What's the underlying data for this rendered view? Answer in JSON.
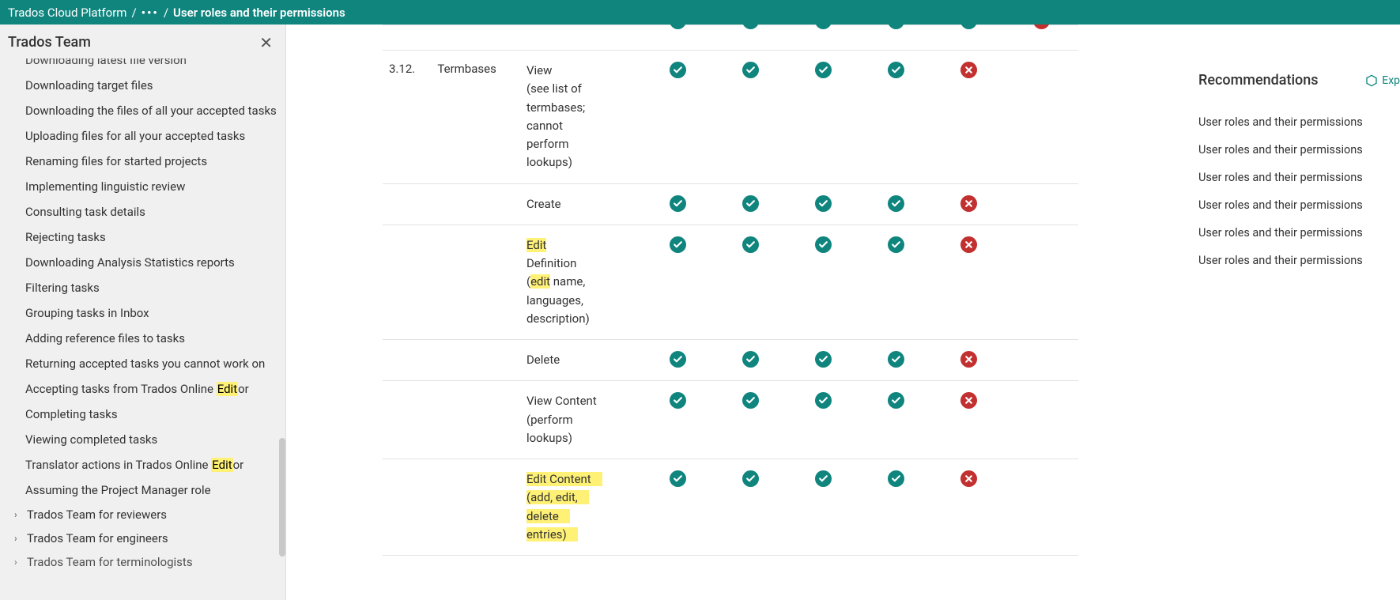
{
  "breadcrumb": {
    "root": "Trados Cloud Platform",
    "current": "User roles and their permissions"
  },
  "sidebar": {
    "title": "Trados Team",
    "items": [
      {
        "text": "Downloading latest file version",
        "cut": true
      },
      {
        "text": "Downloading target files"
      },
      {
        "text": "Downloading the files of all your accepted tasks"
      },
      {
        "text": "Uploading files for all your accepted tasks"
      },
      {
        "text": "Renaming files for started projects"
      },
      {
        "text": "Implementing linguistic review"
      },
      {
        "text": "Consulting task details"
      },
      {
        "text": "Rejecting tasks"
      },
      {
        "text": "Downloading Analysis Statistics reports"
      },
      {
        "text": "Filtering tasks"
      },
      {
        "text": "Grouping tasks in Inbox"
      },
      {
        "text": "Adding reference files to tasks"
      },
      {
        "text": "Returning accepted tasks you cannot work on"
      },
      {
        "pre": "Accepting tasks from Trados Online ",
        "hl": "Edit",
        "post": "or"
      },
      {
        "text": "Completing tasks"
      },
      {
        "text": "Viewing completed tasks"
      },
      {
        "pre": "Translator actions in Trados Online ",
        "hl": "Edit",
        "post": "or"
      },
      {
        "text": "Assuming the Project Manager role"
      }
    ],
    "groups": [
      {
        "text": "Trados Team for reviewers"
      },
      {
        "text": "Trados Team for engineers"
      },
      {
        "text": "Trados Team for terminologists",
        "cut": true
      }
    ]
  },
  "table": {
    "sec_num": "3.12.",
    "sec_name": "Termbases",
    "rows": [
      {
        "action_plain": "",
        "marks": [
          true,
          true,
          true,
          true,
          true,
          false
        ],
        "cut_top": true
      },
      {
        "blank_above": true,
        "action_html": "View<br>(see list of<br>termbases;<br>cannot<br>perform<br>lookups)",
        "marks": [
          true,
          true,
          true,
          true,
          false
        ],
        "first": true
      },
      {
        "action_html": "Create",
        "marks": [
          true,
          true,
          true,
          true,
          false
        ]
      },
      {
        "action_html": "<span class='hl'>Edit</span><br>Definition<br>(<span class='hl'>edit</span> name,<br>languages,<br>description)",
        "marks": [
          true,
          true,
          true,
          true,
          false
        ]
      },
      {
        "action_html": "Delete",
        "marks": [
          true,
          true,
          true,
          true,
          false
        ]
      },
      {
        "action_html": "View Content<br>(perform<br>lookups)",
        "marks": [
          true,
          true,
          true,
          true,
          false
        ]
      },
      {
        "action_html": "<span class='hl-line'><span class='hl'>Edit</span> Content </span><br><span class='hl-line'>(add, <span class='hl'>edit</span>, </span><br><span class='hl-line'>delete </span><br><span class='hl-line'>entries)</span>",
        "marks": [
          true,
          true,
          true,
          true,
          false
        ]
      }
    ]
  },
  "recommendations": {
    "title": "Recommendations",
    "expand": "Exp",
    "links": [
      "User roles and their permissions",
      "User roles and their permissions",
      "User roles and their permissions",
      "User roles and their permissions",
      "User roles and their permissions",
      "User roles and their permissions"
    ]
  }
}
